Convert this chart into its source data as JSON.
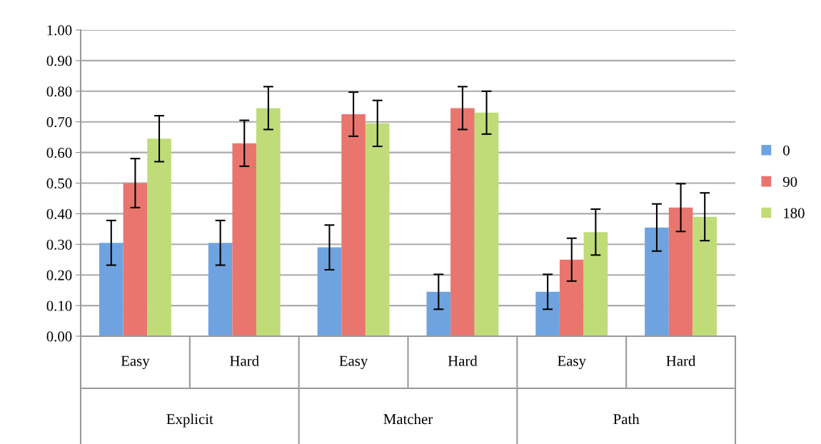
{
  "chart_data": {
    "type": "bar",
    "categories": [
      "Easy",
      "Hard",
      "Easy",
      "Hard",
      "Easy",
      "Hard"
    ],
    "series": [
      {
        "name": "0",
        "color": "#6fa3e0",
        "values": [
          0.305,
          0.305,
          0.29,
          0.145,
          0.145,
          0.355
        ],
        "errors": [
          0.073,
          0.073,
          0.073,
          0.057,
          0.057,
          0.077
        ]
      },
      {
        "name": "90",
        "color": "#e8766e",
        "values": [
          0.5,
          0.63,
          0.725,
          0.745,
          0.25,
          0.42
        ],
        "errors": [
          0.08,
          0.075,
          0.072,
          0.07,
          0.07,
          0.078
        ]
      },
      {
        "name": "180",
        "color": "#bfdc78",
        "values": [
          0.645,
          0.745,
          0.695,
          0.73,
          0.34,
          0.39
        ],
        "errors": [
          0.075,
          0.07,
          0.075,
          0.07,
          0.075,
          0.078
        ]
      }
    ],
    "annotations": [
      "Explicit",
      "Matcher",
      "Path"
    ],
    "ylim": [
      0,
      1
    ],
    "yticks": [
      {
        "value": 0,
        "label": "0.00"
      },
      {
        "value": 0.1,
        "label": "0.10"
      },
      {
        "value": 0.2,
        "label": "0.20"
      },
      {
        "value": 0.3,
        "label": "0.30"
      },
      {
        "value": 0.4,
        "label": "0.40"
      },
      {
        "value": 0.5,
        "label": "0.50"
      },
      {
        "value": 0.6,
        "label": "0.60"
      },
      {
        "value": 0.7,
        "label": "0.70"
      },
      {
        "value": 0.8,
        "label": "0.80"
      },
      {
        "value": 0.9,
        "label": "0.90"
      },
      {
        "value": 1,
        "label": "1.00"
      }
    ],
    "grid": "y",
    "legend": "right"
  }
}
